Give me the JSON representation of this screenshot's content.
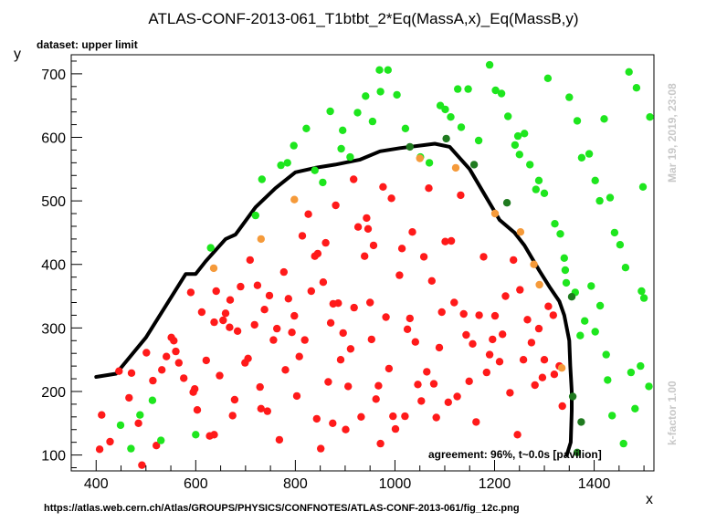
{
  "chart_data": {
    "type": "scatter",
    "title": "ATLAS-CONF-2013-061_T1btbt_2*Eq(MassA,x)_Eq(MassB,y)",
    "subtitle": "dataset: upper limit",
    "xlabel": "x",
    "ylabel": "y",
    "xlim": [
      350,
      1520
    ],
    "ylim": [
      75,
      730
    ],
    "x_ticks": [
      400,
      600,
      800,
      1000,
      1200,
      1400
    ],
    "y_ticks": [
      100,
      200,
      300,
      400,
      500,
      600,
      700
    ],
    "annotation": "agreement: 96%, t~0.0s [pavilion]",
    "side_label_top": "Mar 19, 2019, 23:08",
    "side_label_bottom": "k-factor 1.00",
    "footer_url": "https://atlas.web.cern.ch/Atlas/GROUPS/PHYSICS/CONFNOTES/ATLAS-CONF-2013-061/fig_12c.png",
    "colors": {
      "red": "#ff1a1a",
      "green": "#1ee61e",
      "dark_green": "#1f7a1f",
      "orange": "#f59a3a",
      "contour": "#000000"
    },
    "series": [
      {
        "color_key": "red",
        "points": [
          [
            407,
            109
          ],
          [
            411,
            163
          ],
          [
            428,
            121
          ],
          [
            446,
            232
          ],
          [
            466,
            190
          ],
          [
            471,
            229
          ],
          [
            485,
            150
          ],
          [
            492,
            84
          ],
          [
            501,
            261
          ],
          [
            514,
            217
          ],
          [
            521,
            115
          ],
          [
            532,
            234
          ],
          [
            541,
            255
          ],
          [
            551,
            285
          ],
          [
            556,
            280
          ],
          [
            560,
            263
          ],
          [
            566,
            245
          ],
          [
            576,
            221
          ],
          [
            590,
            356
          ],
          [
            595,
            199
          ],
          [
            598,
            204
          ],
          [
            603,
            171
          ],
          [
            612,
            325
          ],
          [
            621,
            249
          ],
          [
            628,
            130
          ],
          [
            637,
            132
          ],
          [
            637,
            309
          ],
          [
            641,
            358
          ],
          [
            648,
            225
          ],
          [
            655,
            312
          ],
          [
            660,
            323
          ],
          [
            668,
            301
          ],
          [
            669,
            344
          ],
          [
            674,
            162
          ],
          [
            678,
            187
          ],
          [
            684,
            295
          ],
          [
            690,
            365
          ],
          [
            699,
            245
          ],
          [
            705,
            252
          ],
          [
            709,
            407
          ],
          [
            718,
            305
          ],
          [
            724,
            367
          ],
          [
            729,
            207
          ],
          [
            731,
            173
          ],
          [
            738,
            329
          ],
          [
            744,
            169
          ],
          [
            748,
            351
          ],
          [
            756,
            281
          ],
          [
            763,
            299
          ],
          [
            768,
            124
          ],
          [
            777,
            388
          ],
          [
            780,
            234
          ],
          [
            786,
            346
          ],
          [
            793,
            293
          ],
          [
            798,
            319
          ],
          [
            803,
            193
          ],
          [
            808,
            255
          ],
          [
            814,
            445
          ],
          [
            819,
            281
          ],
          [
            826,
            479
          ],
          [
            832,
            358
          ],
          [
            839,
            413
          ],
          [
            843,
            157
          ],
          [
            845,
            417
          ],
          [
            851,
            110
          ],
          [
            856,
            372
          ],
          [
            861,
            434
          ],
          [
            866,
            215
          ],
          [
            871,
            308
          ],
          [
            875,
            150
          ],
          [
            876,
            338
          ],
          [
            881,
            493
          ],
          [
            886,
            339
          ],
          [
            891,
            250
          ],
          [
            896,
            292
          ],
          [
            901,
            140
          ],
          [
            906,
            208
          ],
          [
            911,
            267
          ],
          [
            917,
            534
          ],
          [
            918,
            332
          ],
          [
            926,
            459
          ],
          [
            932,
            160
          ],
          [
            939,
            413
          ],
          [
            943,
            473
          ],
          [
            946,
            456
          ],
          [
            950,
            340
          ],
          [
            953,
            282
          ],
          [
            957,
            430
          ],
          [
            962,
            188
          ],
          [
            967,
            209
          ],
          [
            971,
            118
          ],
          [
            976,
            522
          ],
          [
            982,
            317
          ],
          [
            988,
            236
          ],
          [
            993,
            504
          ],
          [
            996,
            161
          ],
          [
            1001,
            141
          ],
          [
            1009,
            383
          ],
          [
            1014,
            425
          ],
          [
            1020,
            161
          ],
          [
            1025,
            298
          ],
          [
            1030,
            315
          ],
          [
            1035,
            451
          ],
          [
            1041,
            278
          ],
          [
            1046,
            211
          ],
          [
            1053,
            185
          ],
          [
            1058,
            412
          ],
          [
            1064,
            231
          ],
          [
            1068,
            520
          ],
          [
            1074,
            374
          ],
          [
            1078,
            212
          ],
          [
            1083,
            159
          ],
          [
            1089,
            269
          ],
          [
            1094,
            325
          ],
          [
            1101,
            436
          ],
          [
            1107,
            183
          ],
          [
            1113,
            437
          ],
          [
            1119,
            340
          ],
          [
            1125,
            192
          ],
          [
            1132,
            509
          ],
          [
            1138,
            322
          ],
          [
            1143,
            289
          ],
          [
            1149,
            216
          ],
          [
            1156,
            275
          ],
          [
            1163,
            152
          ],
          [
            1169,
            320
          ],
          [
            1178,
            412
          ],
          [
            1184,
            230
          ],
          [
            1190,
            258
          ],
          [
            1196,
            282
          ],
          [
            1201,
            319
          ],
          [
            1210,
            247
          ],
          [
            1216,
            290
          ],
          [
            1222,
            350
          ],
          [
            1231,
            198
          ],
          [
            1238,
            407
          ],
          [
            1246,
            132
          ],
          [
            1251,
            360
          ],
          [
            1258,
            250
          ],
          [
            1266,
            313
          ],
          [
            1274,
            277
          ],
          [
            1281,
            210
          ],
          [
            1289,
            299
          ],
          [
            1296,
            222
          ],
          [
            1300,
            250
          ],
          [
            1308,
            334
          ],
          [
            1318,
            320
          ],
          [
            1320,
            227
          ],
          [
            1330,
            240
          ],
          [
            1336,
            177
          ]
        ]
      },
      {
        "color_key": "green",
        "points": [
          [
            449,
            147
          ],
          [
            470,
            110
          ],
          [
            488,
            163
          ],
          [
            513,
            186
          ],
          [
            530,
            123
          ],
          [
            600,
            132
          ],
          [
            630,
            426
          ],
          [
            720,
            477
          ],
          [
            733,
            534
          ],
          [
            771,
            556
          ],
          [
            784,
            560
          ],
          [
            797,
            587
          ],
          [
            822,
            614
          ],
          [
            839,
            548
          ],
          [
            855,
            529
          ],
          [
            870,
            641
          ],
          [
            892,
            582
          ],
          [
            895,
            611
          ],
          [
            910,
            569
          ],
          [
            925,
            639
          ],
          [
            941,
            665
          ],
          [
            955,
            625
          ],
          [
            969,
            706
          ],
          [
            971,
            672
          ],
          [
            986,
            706
          ],
          [
            1004,
            667
          ],
          [
            1021,
            614
          ],
          [
            1051,
            569
          ],
          [
            1069,
            560
          ],
          [
            1091,
            650
          ],
          [
            1101,
            644
          ],
          [
            1112,
            632
          ],
          [
            1126,
            676
          ],
          [
            1133,
            616
          ],
          [
            1147,
            676
          ],
          [
            1168,
            595
          ],
          [
            1190,
            714
          ],
          [
            1202,
            674
          ],
          [
            1214,
            669
          ],
          [
            1227,
            633
          ],
          [
            1241,
            588
          ],
          [
            1247,
            602
          ],
          [
            1250,
            573
          ],
          [
            1260,
            606
          ],
          [
            1271,
            557
          ],
          [
            1283,
            518
          ],
          [
            1289,
            532
          ],
          [
            1300,
            512
          ],
          [
            1307,
            693
          ],
          [
            1321,
            464
          ],
          [
            1332,
            448
          ],
          [
            1342,
            391
          ],
          [
            1350,
            663
          ],
          [
            1366,
            626
          ],
          [
            1375,
            568
          ],
          [
            1381,
            311
          ],
          [
            1390,
            574
          ],
          [
            1402,
            294
          ],
          [
            1402,
            532
          ],
          [
            1411,
            500
          ],
          [
            1420,
            629
          ],
          [
            1432,
            505
          ],
          [
            1441,
            450
          ],
          [
            1452,
            431
          ],
          [
            1463,
            395
          ],
          [
            1470,
            703
          ],
          [
            1485,
            678
          ],
          [
            1495,
            358
          ],
          [
            1498,
            522
          ],
          [
            1500,
            347
          ],
          [
            1512,
            632
          ],
          [
            1510,
            208
          ],
          [
            1493,
            240
          ],
          [
            1482,
            173
          ],
          [
            1474,
            230
          ],
          [
            1459,
            118
          ],
          [
            1436,
            162
          ],
          [
            1427,
            218
          ],
          [
            1424,
            258
          ],
          [
            1412,
            335
          ],
          [
            1394,
            366
          ],
          [
            1372,
            288
          ],
          [
            1362,
            356
          ],
          [
            1344,
            371
          ],
          [
            1340,
            410
          ]
        ]
      },
      {
        "color_key": "dark_green",
        "points": [
          [
            1030,
            585
          ],
          [
            1103,
            598
          ],
          [
            1159,
            557
          ],
          [
            1225,
            497
          ],
          [
            1355,
            349
          ],
          [
            1357,
            192
          ],
          [
            1366,
            104
          ],
          [
            1374,
            152
          ]
        ]
      },
      {
        "color_key": "orange",
        "points": [
          [
            636,
            394
          ],
          [
            731,
            440
          ],
          [
            798,
            502
          ],
          [
            1050,
            567
          ],
          [
            1122,
            552
          ],
          [
            1201,
            480
          ],
          [
            1252,
            451
          ],
          [
            1279,
            400
          ],
          [
            1290,
            368
          ],
          [
            1335,
            237
          ]
        ]
      }
    ],
    "contour": [
      [
        400,
        223
      ],
      [
        440,
        228
      ],
      [
        500,
        285
      ],
      [
        580,
        385
      ],
      [
        600,
        385
      ],
      [
        620,
        405
      ],
      [
        660,
        440
      ],
      [
        680,
        447
      ],
      [
        720,
        490
      ],
      [
        760,
        520
      ],
      [
        800,
        545
      ],
      [
        840,
        552
      ],
      [
        880,
        557
      ],
      [
        930,
        565
      ],
      [
        970,
        578
      ],
      [
        1010,
        583
      ],
      [
        1060,
        588
      ],
      [
        1080,
        590
      ],
      [
        1110,
        585
      ],
      [
        1150,
        550
      ],
      [
        1180,
        510
      ],
      [
        1210,
        470
      ],
      [
        1240,
        450
      ],
      [
        1260,
        430
      ],
      [
        1290,
        390
      ],
      [
        1310,
        365
      ],
      [
        1330,
        342
      ],
      [
        1340,
        320
      ],
      [
        1350,
        280
      ],
      [
        1352,
        240
      ],
      [
        1355,
        200
      ],
      [
        1355,
        170
      ],
      [
        1353,
        120
      ],
      [
        1345,
        100
      ]
    ]
  }
}
